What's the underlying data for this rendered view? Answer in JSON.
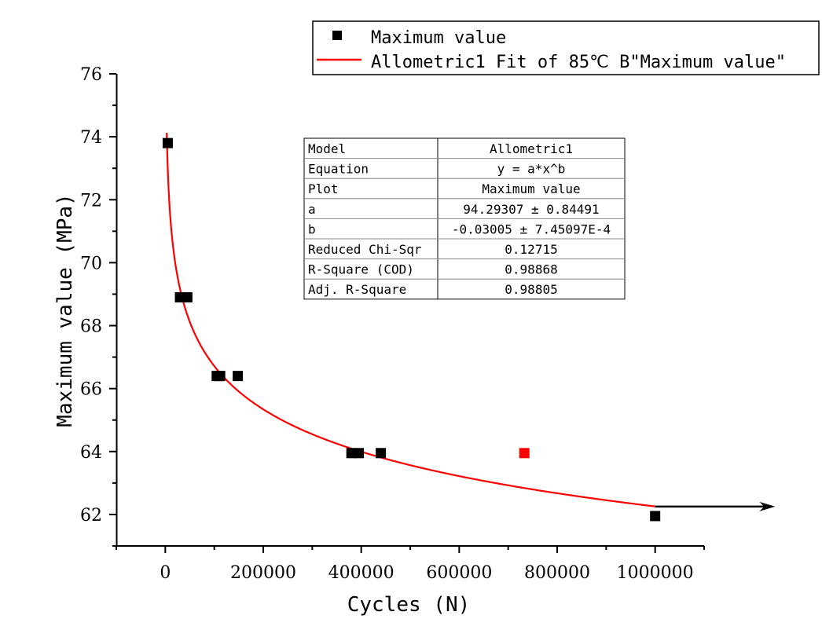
{
  "chart_data": {
    "type": "scatter",
    "xlabel": "Cycles (N)",
    "ylabel": "Maximum value (MPa)",
    "xlim": [
      -100000,
      1100000
    ],
    "ylim": [
      61,
      76
    ],
    "x_ticks": [
      0,
      200000,
      400000,
      600000,
      800000,
      1000000
    ],
    "x_tick_labels": [
      "0",
      "200000",
      "400000",
      "600000",
      "800000",
      "1000000"
    ],
    "y_ticks": [
      62,
      64,
      66,
      68,
      70,
      72,
      74,
      76
    ],
    "y_tick_labels": [
      "62",
      "64",
      "66",
      "68",
      "70",
      "72",
      "74",
      "76"
    ],
    "grid": false,
    "legend_position": "top-right",
    "series": [
      {
        "name": "Maximum value",
        "kind": "points",
        "color": "#000000",
        "points": [
          {
            "x": 5000,
            "y": 73.8
          },
          {
            "x": 30000,
            "y": 68.9
          },
          {
            "x": 45000,
            "y": 68.9
          },
          {
            "x": 105000,
            "y": 66.4
          },
          {
            "x": 112000,
            "y": 66.4
          },
          {
            "x": 148000,
            "y": 66.4
          },
          {
            "x": 380000,
            "y": 63.95
          },
          {
            "x": 395000,
            "y": 63.95
          },
          {
            "x": 440000,
            "y": 63.95
          },
          {
            "x": 1000000,
            "y": 61.95
          }
        ]
      },
      {
        "name": "",
        "kind": "points",
        "color": "#ff0000",
        "points": [
          {
            "x": 733000,
            "y": 63.95
          }
        ]
      },
      {
        "name": "Allometric1 Fit of 85℃ B\"Maximum value\"",
        "kind": "fit",
        "color": "#ff0000",
        "a": 94.29307,
        "b": -0.03005,
        "x_range": [
          3000,
          1000000
        ]
      }
    ],
    "annotations": [
      {
        "kind": "arrow",
        "color": "#000000",
        "from": {
          "x": 1000000,
          "y": 62.25
        },
        "to": {
          "x": 1245000,
          "y": 62.25
        }
      }
    ],
    "fit_table": [
      {
        "label": "Model",
        "value": "Allometric1"
      },
      {
        "label": "Equation",
        "value": "y = a*x^b"
      },
      {
        "label": "Plot",
        "value": "Maximum value"
      },
      {
        "label": "a",
        "value": "94.29307 ± 0.84491"
      },
      {
        "label": "b",
        "value": "-0.03005 ± 7.45097E-4"
      },
      {
        "label": "Reduced Chi-Sqr",
        "value": "0.12715"
      },
      {
        "label": "R-Square (COD)",
        "value": "0.98868"
      },
      {
        "label": "Adj. R-Square",
        "value": "0.98805"
      }
    ]
  }
}
